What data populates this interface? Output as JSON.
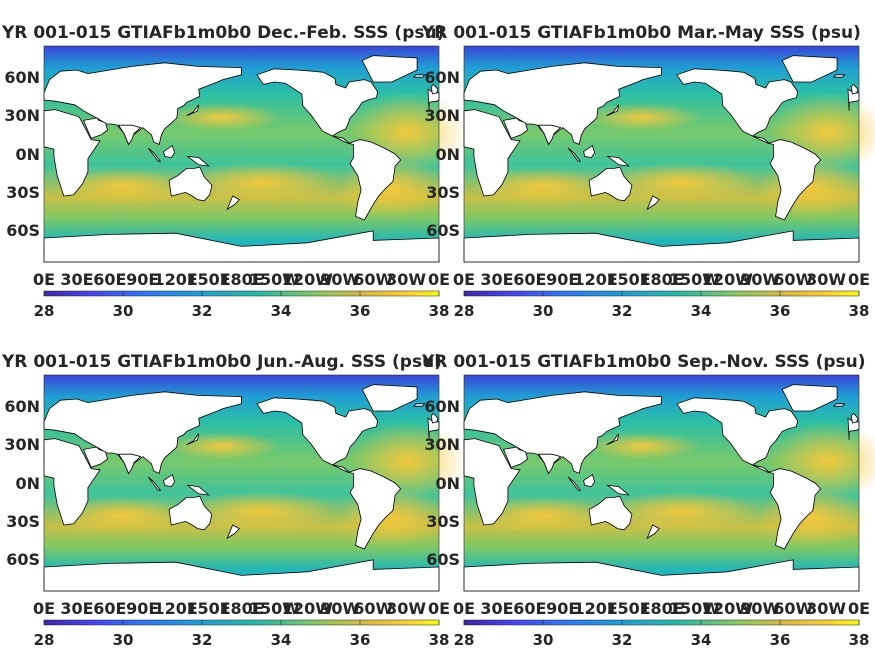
{
  "figure": {
    "colormap": "parula",
    "colorbar": {
      "min": 28,
      "max": 38,
      "ticks": [
        "28",
        "30",
        "32",
        "34",
        "36",
        "38"
      ]
    },
    "colors": {
      "low": "#3e26a8",
      "mid": "#21b1c8",
      "high": "#f9fb0e",
      "land": "#ffffff",
      "coast": "#000000"
    }
  },
  "panels": [
    {
      "title": "YR 001-015 GTIAFb1m0b0 Dec.-Feb. SSS (psu)",
      "lat_ticks": [
        "60N",
        "30N",
        "0N",
        "30S",
        "60S"
      ],
      "lon_ticks": [
        "0E",
        "30E",
        "60E",
        "90E",
        "120E",
        "150E",
        "180E",
        "150W",
        "120W",
        "90W",
        "60W",
        "30W",
        "0E"
      ],
      "cb_ticks": [
        "28",
        "30",
        "32",
        "34",
        "36",
        "38"
      ]
    },
    {
      "title": "YR 001-015 GTIAFb1m0b0 Mar.-May SSS (psu)",
      "lat_ticks": [
        "60N",
        "30N",
        "0N",
        "30S",
        "60S"
      ],
      "lon_ticks": [
        "0E",
        "30E",
        "60E",
        "90E",
        "120E",
        "150E",
        "180E",
        "150W",
        "120W",
        "90W",
        "60W",
        "30W",
        "0E"
      ],
      "cb_ticks": [
        "28",
        "30",
        "32",
        "34",
        "36",
        "38"
      ]
    },
    {
      "title": "YR 001-015 GTIAFb1m0b0 Jun.-Aug. SSS (psu)",
      "lat_ticks": [
        "60N",
        "30N",
        "0N",
        "30S",
        "60S"
      ],
      "lon_ticks": [
        "0E",
        "30E",
        "60E",
        "90E",
        "120E",
        "150E",
        "180E",
        "150W",
        "120W",
        "90W",
        "60W",
        "30W",
        "0E"
      ],
      "cb_ticks": [
        "28",
        "30",
        "32",
        "34",
        "36",
        "38"
      ]
    },
    {
      "title": "YR 001-015 GTIAFb1m0b0 Sep.-Nov. SSS (psu)",
      "lat_ticks": [
        "60N",
        "30N",
        "0N",
        "30S",
        "60S"
      ],
      "lon_ticks": [
        "0E",
        "30E",
        "60E",
        "90E",
        "120E",
        "150E",
        "180E",
        "150W",
        "120W",
        "90W",
        "60W",
        "30W",
        "0E"
      ],
      "cb_ticks": [
        "28",
        "30",
        "32",
        "34",
        "36",
        "38"
      ]
    }
  ]
}
